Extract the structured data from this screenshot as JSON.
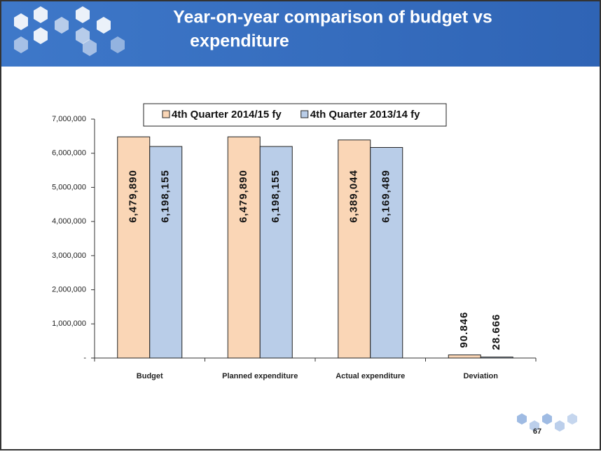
{
  "header": {
    "title_line1": "Year-on-year comparison of budget vs",
    "title_line2": "expenditure"
  },
  "chart_data": {
    "type": "bar",
    "categories": [
      "Budget",
      "Planned expenditure",
      "Actual expenditure",
      "Deviation"
    ],
    "series": [
      {
        "name": "4th Quarter 2014/15 fy",
        "color": "#fad6b6",
        "values": [
          6479890,
          6479890,
          6389044,
          90846
        ],
        "value_labels": [
          "6,479,890",
          "6,479,890",
          "6,389,044",
          "90.846"
        ]
      },
      {
        "name": "4th  Quarter 2013/14 fy",
        "color": "#b9cde8",
        "values": [
          6198155,
          6198155,
          6169489,
          28666
        ],
        "value_labels": [
          "6,198,155",
          "6,198,155",
          "6,169,489",
          "28.666"
        ]
      }
    ],
    "ylim": [
      0,
      7000000
    ],
    "yticks": [
      {
        "value": 0,
        "label": "-"
      },
      {
        "value": 1000000,
        "label": "1,000,000"
      },
      {
        "value": 2000000,
        "label": "2,000,000"
      },
      {
        "value": 3000000,
        "label": "3,000,000"
      },
      {
        "value": 4000000,
        "label": "4,000,000"
      },
      {
        "value": 5000000,
        "label": "5,000,000"
      },
      {
        "value": 6000000,
        "label": "6,000,000"
      },
      {
        "value": 7000000,
        "label": "7,000,000"
      }
    ],
    "legend": "top"
  },
  "footer": {
    "page_number": "67"
  }
}
